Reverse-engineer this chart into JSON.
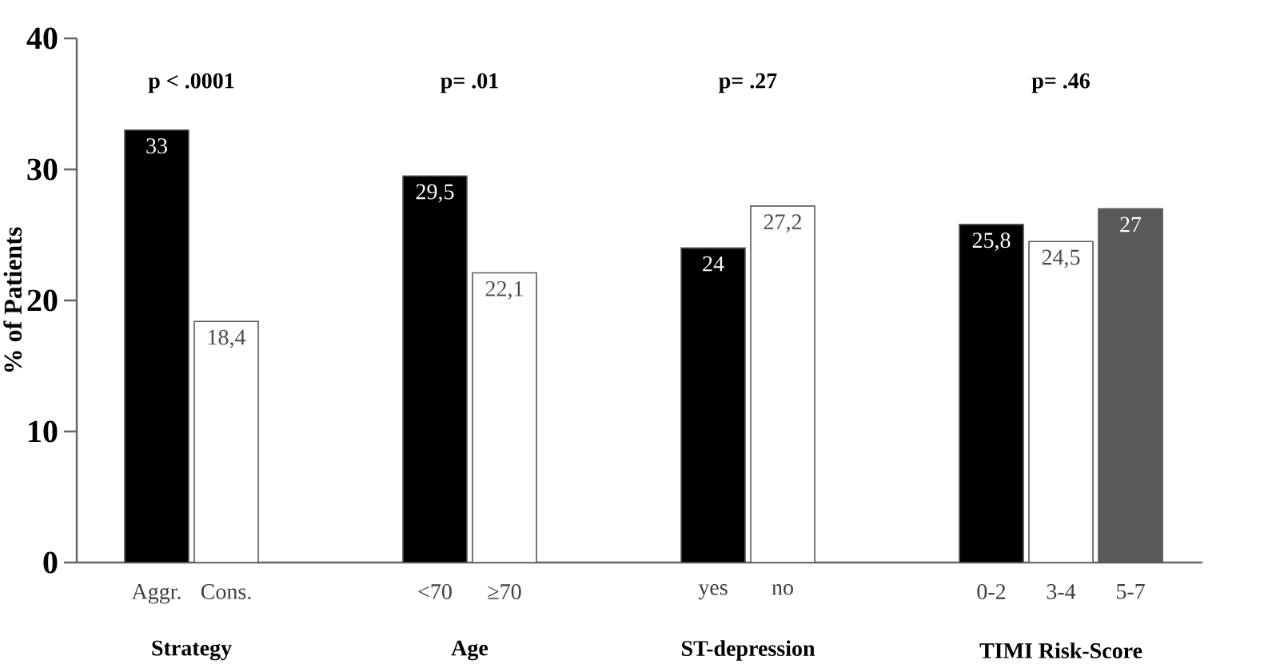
{
  "chart_data": {
    "type": "bar",
    "ylabel": "% of Patients",
    "categories": [
      "Aggr.",
      "Cons.",
      null,
      null,
      "<70",
      "≥70",
      null,
      null,
      "yes",
      "no",
      null,
      null,
      "0-2",
      "3-4",
      "5-7"
    ],
    "values": [
      33,
      18.4,
      null,
      null,
      29.5,
      22.1,
      null,
      null,
      24,
      27.2,
      null,
      null,
      25.8,
      24.5,
      27
    ],
    "colors": [
      "#000000",
      "#ffffff",
      null,
      null,
      "#000000",
      "#ffffff",
      null,
      null,
      "#000000",
      "#ffffff",
      null,
      null,
      "#000000",
      "#ffffff",
      "#5a5a5a"
    ],
    "value_labels": [
      "33",
      "18,4",
      null,
      null,
      "29,5",
      "22,1",
      null,
      null,
      "24",
      "27,2",
      null,
      null,
      "25,8",
      "24,5",
      "27"
    ],
    "ylim": [
      0,
      40
    ],
    "yticks": [
      0,
      10,
      20,
      30,
      40
    ],
    "grid": false,
    "annotations": [
      "p < .0001",
      "p= .01",
      "p= .27",
      "p= .46",
      "Strategy",
      "Age",
      "ST-depression",
      "TIMI Risk-Score"
    ]
  }
}
